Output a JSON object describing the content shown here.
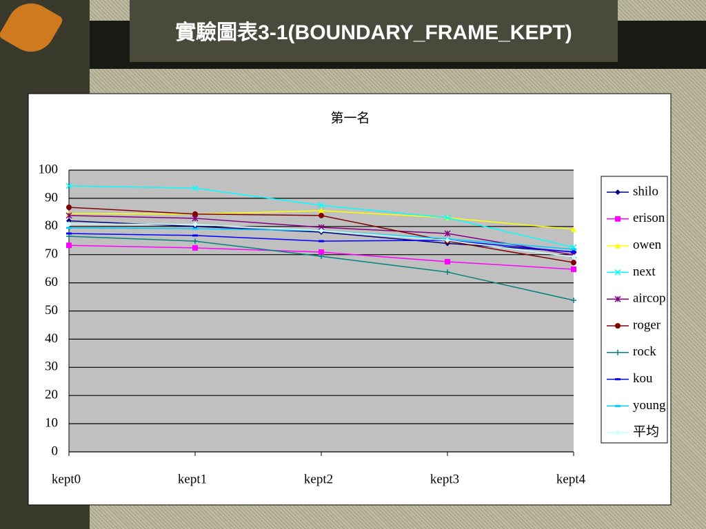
{
  "slide": {
    "title": "實驗圖表3-1(BOUNDARY_FRAME_KEPT)"
  },
  "chart_data": {
    "type": "line",
    "title": "第一名",
    "categories": [
      "kept0",
      "kept1",
      "kept2",
      "kept3",
      "kept4"
    ],
    "ylim": [
      0,
      100
    ],
    "yticks": [
      0,
      10,
      20,
      30,
      40,
      50,
      60,
      70,
      80,
      90,
      100
    ],
    "grid": true,
    "legend": "right",
    "series": [
      {
        "name": "shilo",
        "color": "#000080",
        "marker": "diamond",
        "values": [
          82,
          80,
          78,
          74,
          71
        ]
      },
      {
        "name": "erison",
        "color": "#ff00ff",
        "marker": "square",
        "values": [
          73.3,
          72.4,
          70.9,
          67.5,
          64.8
        ]
      },
      {
        "name": "owen",
        "color": "#ffff00",
        "marker": "triangle",
        "values": [
          84.6,
          84.4,
          85.6,
          83.1,
          79
        ]
      },
      {
        "name": "next",
        "color": "#00ffff",
        "marker": "x",
        "values": [
          94.4,
          93.6,
          87.5,
          83.1,
          72.6
        ]
      },
      {
        "name": "aircop",
        "color": "#800080",
        "marker": "star",
        "values": [
          83.9,
          82.9,
          79.7,
          77.5,
          69.9
        ]
      },
      {
        "name": "roger",
        "color": "#800000",
        "marker": "circle",
        "values": [
          86.8,
          84.4,
          83.9,
          74.8,
          67.2
        ]
      },
      {
        "name": "rock",
        "color": "#008080",
        "marker": "plus",
        "values": [
          76.5,
          74.8,
          69.4,
          63.8,
          53.8
        ]
      },
      {
        "name": "kou",
        "color": "#0000ff",
        "marker": "dash",
        "values": [
          77.5,
          76.8,
          74.8,
          75.1,
          70.9
        ]
      },
      {
        "name": "young",
        "color": "#00ccff",
        "marker": "dash",
        "values": [
          79.5,
          79.2,
          78.5,
          75.6,
          71.9
        ]
      },
      {
        "name": "平均",
        "color": "#ccffff",
        "marker": "diamond",
        "values": [
          80.9,
          80.7,
          78.5,
          75.1,
          69.2
        ]
      }
    ]
  }
}
